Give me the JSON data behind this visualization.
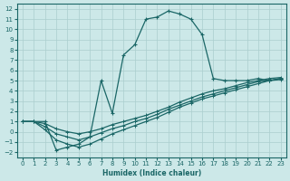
{
  "xlabel": "Humidex (Indice chaleur)",
  "bg_color": "#cce8e8",
  "grid_color": "#aacece",
  "line_color": "#1a6666",
  "xlim": [
    -0.5,
    23.5
  ],
  "ylim": [
    -2.5,
    12.5
  ],
  "xticks": [
    0,
    1,
    2,
    3,
    4,
    5,
    6,
    7,
    8,
    9,
    10,
    11,
    12,
    13,
    14,
    15,
    16,
    17,
    18,
    19,
    20,
    21,
    22,
    23
  ],
  "yticks": [
    -2,
    -1,
    0,
    1,
    2,
    3,
    4,
    5,
    6,
    7,
    8,
    9,
    10,
    11,
    12
  ],
  "curve1_x": [
    0,
    1,
    2,
    3,
    4,
    5,
    6,
    7,
    8,
    9,
    10,
    11,
    12,
    13,
    14,
    15,
    16,
    17,
    18,
    19,
    20,
    21,
    22,
    23
  ],
  "curve1_y": [
    1.0,
    1.0,
    1.0,
    -1.8,
    -1.5,
    -1.2,
    -0.5,
    5.0,
    1.8,
    7.5,
    8.5,
    11.0,
    11.2,
    11.8,
    11.5,
    11.0,
    9.5,
    5.2,
    5.0,
    5.0,
    5.0,
    5.2,
    5.0,
    5.2
  ],
  "curve2_x": [
    0,
    1,
    2,
    3,
    4,
    5,
    6,
    7,
    8,
    9,
    10,
    11,
    12,
    13,
    14,
    15,
    16,
    17,
    18,
    19,
    20,
    21,
    22,
    23
  ],
  "curve2_y": [
    1.0,
    1.0,
    0.8,
    0.3,
    0.0,
    -0.2,
    0.0,
    0.3,
    0.7,
    1.0,
    1.3,
    1.6,
    2.0,
    2.4,
    2.9,
    3.3,
    3.7,
    4.0,
    4.2,
    4.5,
    4.8,
    5.0,
    5.2,
    5.3
  ],
  "curve3_x": [
    0,
    1,
    2,
    3,
    4,
    5,
    6,
    7,
    8,
    9,
    10,
    11,
    12,
    13,
    14,
    15,
    16,
    17,
    18,
    19,
    20,
    21,
    22,
    23
  ],
  "curve3_y": [
    1.0,
    1.0,
    0.5,
    -0.2,
    -0.5,
    -0.8,
    -0.5,
    -0.1,
    0.3,
    0.6,
    1.0,
    1.3,
    1.7,
    2.2,
    2.6,
    3.0,
    3.4,
    3.7,
    4.0,
    4.3,
    4.6,
    4.9,
    5.0,
    5.2
  ],
  "curve4_x": [
    0,
    1,
    2,
    3,
    4,
    5,
    6,
    7,
    8,
    9,
    10,
    11,
    12,
    13,
    14,
    15,
    16,
    17,
    18,
    19,
    20,
    21,
    22,
    23
  ],
  "curve4_y": [
    1.0,
    1.0,
    0.2,
    -0.8,
    -1.2,
    -1.5,
    -1.2,
    -0.7,
    -0.2,
    0.2,
    0.6,
    1.0,
    1.4,
    1.9,
    2.4,
    2.8,
    3.2,
    3.5,
    3.8,
    4.1,
    4.4,
    4.7,
    5.0,
    5.1
  ]
}
